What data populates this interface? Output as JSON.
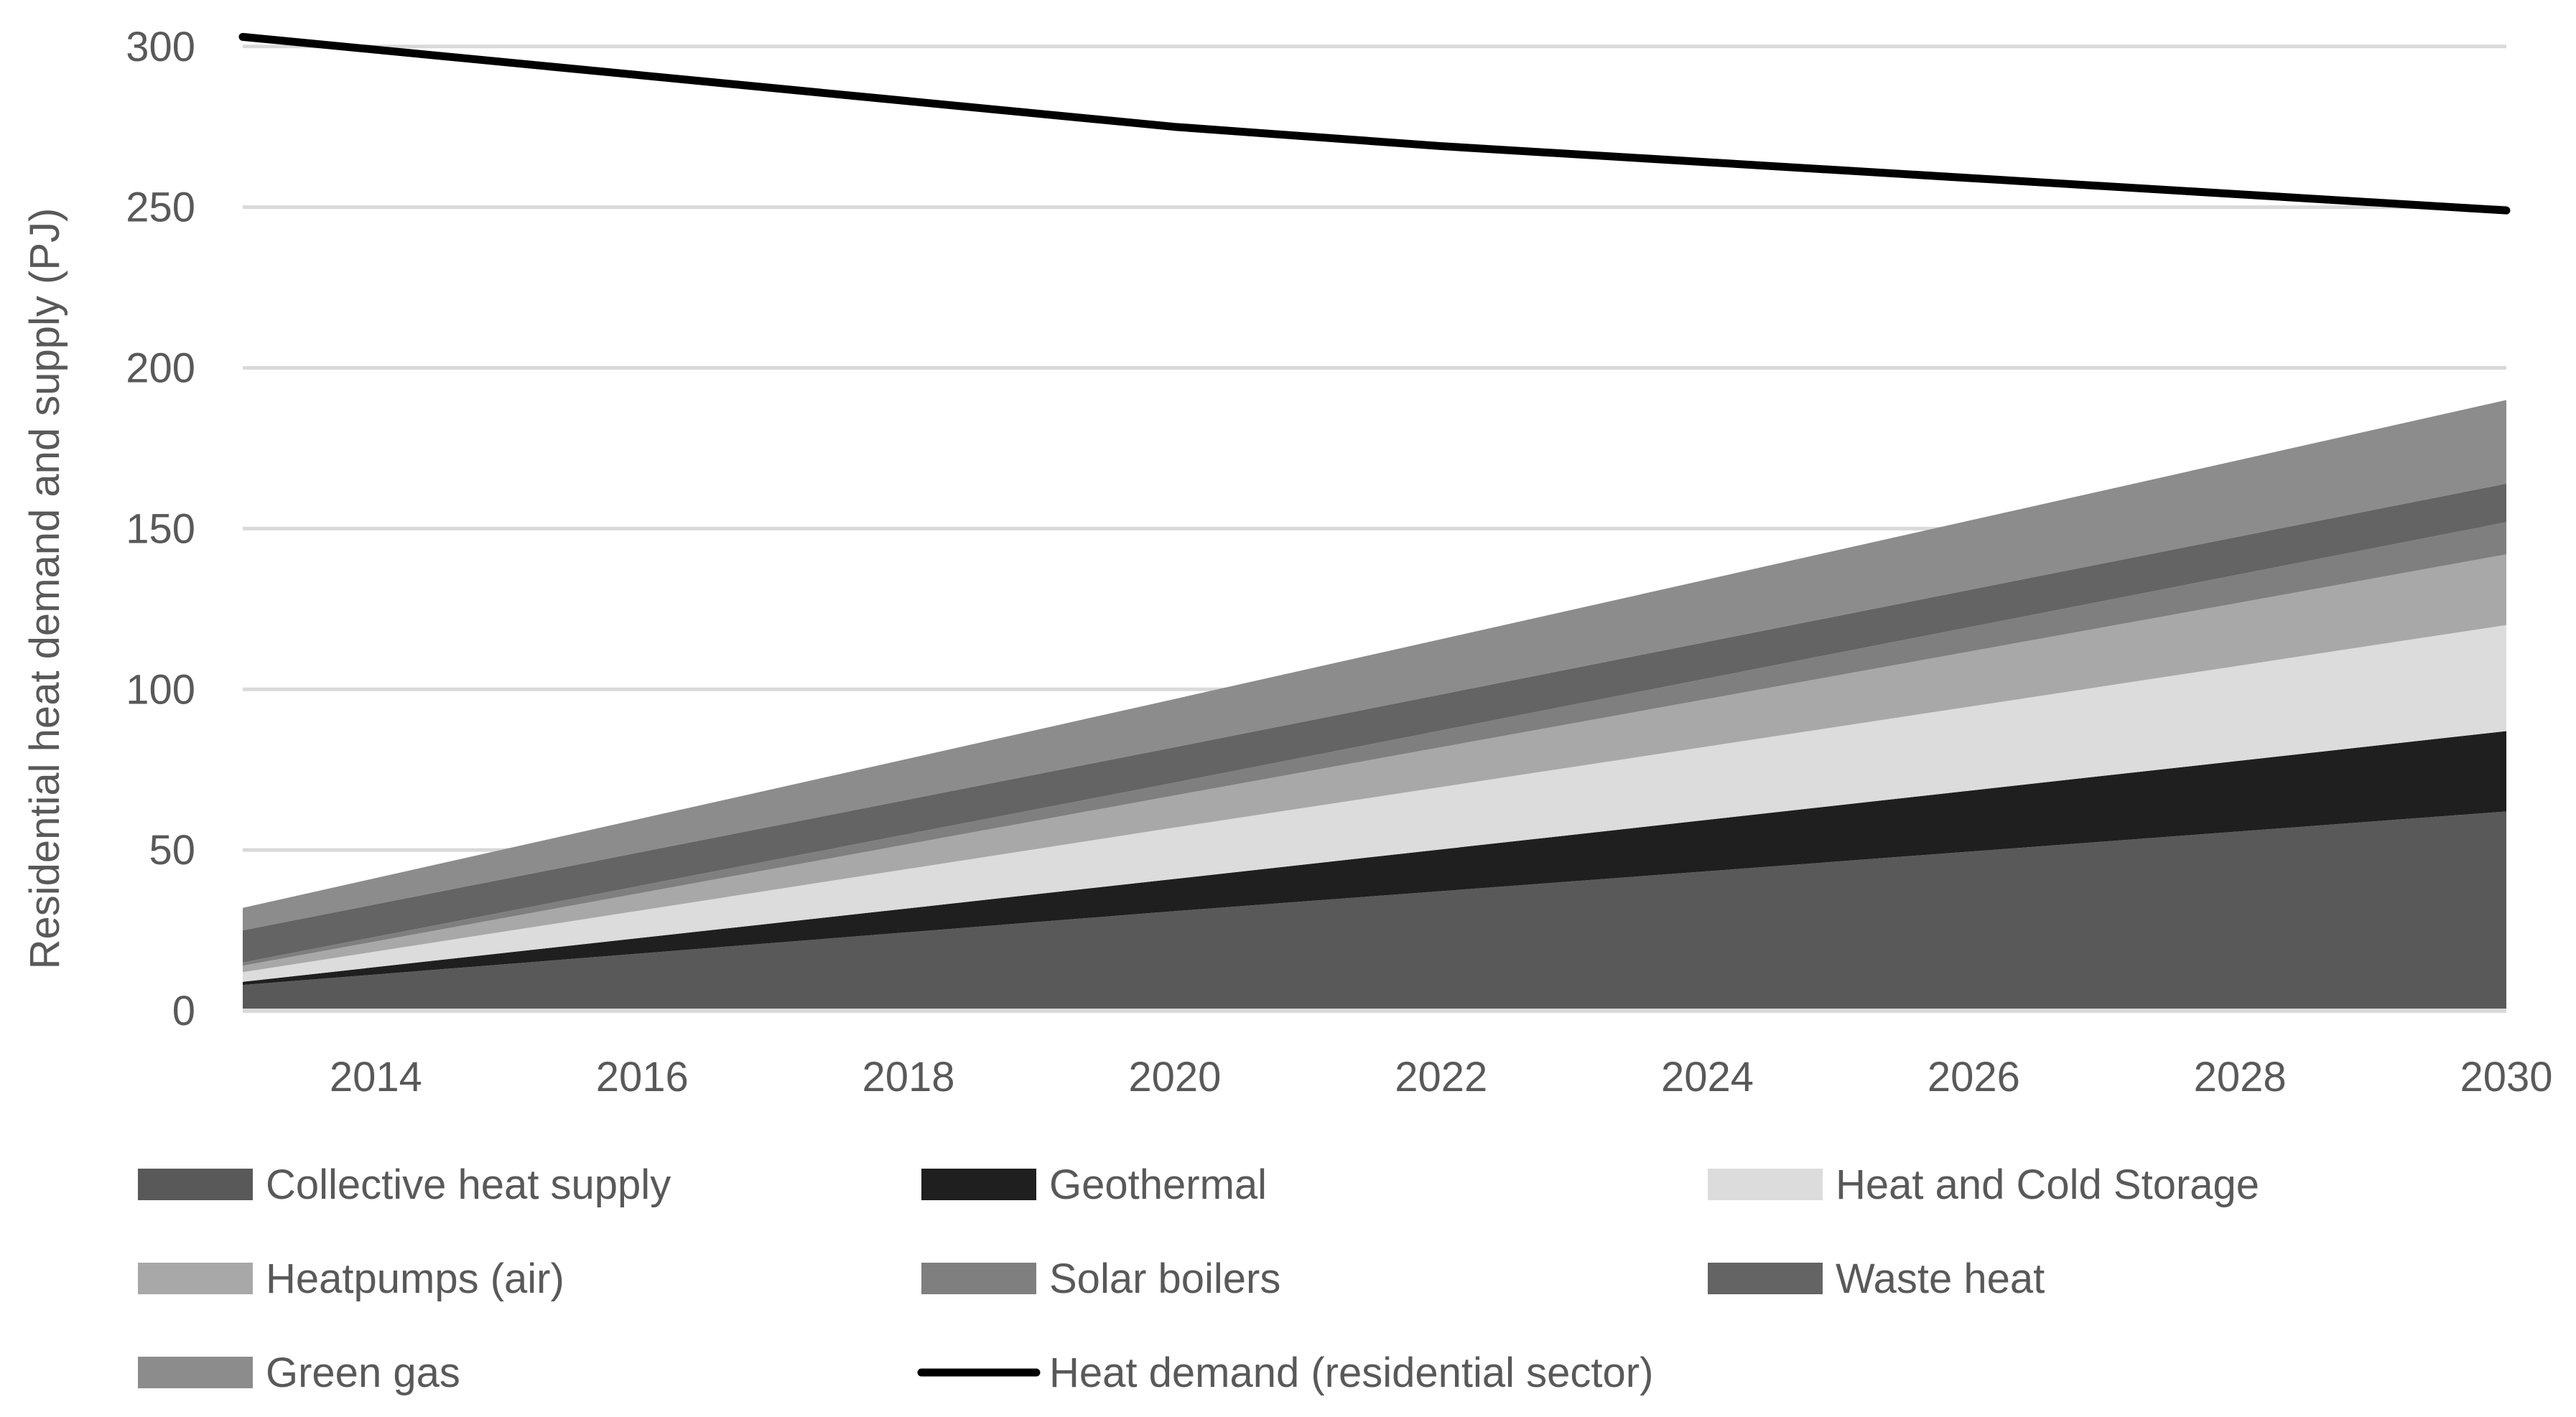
{
  "chart_data": {
    "type": "area",
    "stacked": true,
    "title": "",
    "xlabel": "",
    "ylabel": "Residential heat demand and supply (PJ)",
    "x": [
      2013,
      2020,
      2030
    ],
    "xlim": [
      2013,
      2030
    ],
    "xticks": [
      2014,
      2016,
      2018,
      2020,
      2022,
      2024,
      2026,
      2028,
      2030
    ],
    "ylim": [
      0,
      310
    ],
    "yticks": [
      0,
      50,
      100,
      150,
      200,
      250,
      300
    ],
    "grid": true,
    "series": [
      {
        "name": "Collective heat supply",
        "kind": "area",
        "color": "#595959",
        "values": [
          8,
          31,
          62
        ]
      },
      {
        "name": "Geothermal",
        "kind": "area",
        "color": "#1f1f1f",
        "values": [
          1,
          10,
          25
        ]
      },
      {
        "name": "Heat and Cold Storage",
        "kind": "area",
        "color": "#dcdcdc",
        "values": [
          3,
          16,
          33
        ]
      },
      {
        "name": "Heatpumps (air)",
        "kind": "area",
        "color": "#a8a8a8",
        "values": [
          2,
          10,
          22
        ]
      },
      {
        "name": "Solar boilers",
        "kind": "area",
        "color": "#7f7f7f",
        "values": [
          1,
          4,
          10
        ]
      },
      {
        "name": "Waste heat",
        "kind": "area",
        "color": "#646464",
        "values": [
          10,
          11,
          12
        ]
      },
      {
        "name": "Green gas",
        "kind": "area",
        "color": "#8c8c8c",
        "values": [
          7,
          15,
          26
        ]
      },
      {
        "name": "Heat demand (residential sector)",
        "kind": "line",
        "color": "#000000",
        "x": [
          2013,
          2016,
          2018,
          2020,
          2022,
          2024,
          2026,
          2028,
          2030
        ],
        "values": [
          303,
          291,
          283,
          275,
          269,
          264,
          259,
          254,
          249
        ]
      }
    ],
    "legend_position": "bottom"
  }
}
